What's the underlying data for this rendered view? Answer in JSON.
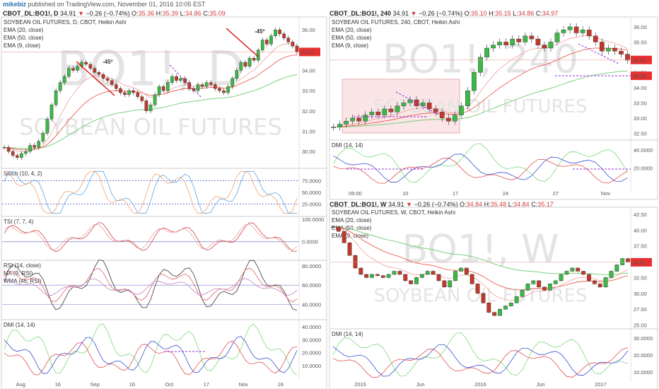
{
  "header": {
    "user": "mikebiz",
    "published": "published on TradingView.com, November 01, 2016 10:05 EST"
  },
  "symbol_bars": [
    {
      "id": "d",
      "sym": "CBOT_DL:BO1!, D",
      "last": "34.91",
      "chg": "−0.26 (−0.74%)",
      "o": "35.36",
      "h": "35.39",
      "l": "34.86",
      "c": "35.09"
    },
    {
      "id": "h4",
      "sym": "CBOT_DL:BO1!, 240",
      "last": "34.91",
      "chg": "−0.26 (−0.74%)",
      "o": "35.10",
      "h": "35.15",
      "l": "34.86",
      "c": "34.97"
    },
    {
      "id": "w",
      "sym": "CBOT_DL:BO1!, W",
      "last": "34.91",
      "chg": "−0.26 (−0.74%)",
      "o": "34.84",
      "h": "35.48",
      "l": "34.84",
      "c": "35.17"
    }
  ],
  "chart_data": [
    {
      "id": "daily",
      "type": "candlestick",
      "title": "SOYBEAN OIL FUTURES, D, CBOT, Heikin Ashi",
      "watermark": "BO1!, D",
      "watermark_sub": "SOYBEAN OIL FUTURES",
      "overlays": [
        "EMA (20, close)",
        "EMA (50, close)",
        "EMA (9, close)"
      ],
      "price_ticks": [
        "36.00",
        "35.00",
        "34.00",
        "33.00",
        "32.00",
        "31.00",
        "30.00"
      ],
      "last_price": "34.91",
      "annotations": [
        "-45º",
        "-45º"
      ],
      "x_ticks": [
        "Aug",
        "16",
        "Sep",
        "16",
        "Oct",
        "17",
        "Nov",
        "16"
      ],
      "candles": [
        30.2,
        30.0,
        29.8,
        29.7,
        29.9,
        30.0,
        30.3,
        30.2,
        30.5,
        30.9,
        31.6,
        32.3,
        33.0,
        33.4,
        33.7,
        34.1,
        34.0,
        34.2,
        34.4,
        34.3,
        34.1,
        33.9,
        33.8,
        33.6,
        33.5,
        33.3,
        33.1,
        32.9,
        32.8,
        33.0,
        32.9,
        32.7,
        32.5,
        32.0,
        32.3,
        32.8,
        33.2,
        33.0,
        33.4,
        33.7,
        33.5,
        33.6,
        33.4,
        33.1,
        33.0,
        33.3,
        33.2,
        33.4,
        33.3,
        33.1,
        33.0,
        32.9,
        33.2,
        33.6,
        34.0,
        34.4,
        34.2,
        34.6,
        34.5,
        35.0,
        35.5,
        35.3,
        35.7,
        36.0,
        35.8,
        35.6,
        35.4,
        35.2,
        34.9
      ],
      "indicators": [
        {
          "name": "Stoch (10, 4, 2)",
          "ticks": [
            "75.0000",
            "50.0000",
            "25.0000"
          ]
        },
        {
          "name": "TSI (7, 7, 4)",
          "ticks": [
            "100.0000",
            "0.0000"
          ]
        },
        {
          "name": "RSI (14, close)",
          "sub": [
            "MA (9, RSI)",
            "WMA (45, RSI)"
          ],
          "ticks": [
            "80.0000",
            "60.0000",
            "40.0000"
          ]
        },
        {
          "name": "DMI (14, 14)",
          "ticks": [
            "40.0000",
            "30.0000",
            "20.0000",
            "10.0000"
          ]
        }
      ]
    },
    {
      "id": "h240",
      "type": "candlestick",
      "title": "SOYBEAN OIL FUTURES, 240, CBOT, Heikin Ashi",
      "watermark": "BO1!, 240",
      "watermark_sub": "SOYBEAN OIL FUTURES",
      "overlays": [
        "EMA (20, close)",
        "EMA (50, close)",
        "EMA (9, close)"
      ],
      "price_ticks": [
        "36.00",
        "35.50",
        "35.00",
        "34.50",
        "34.00",
        "33.50",
        "33.00",
        "32.50"
      ],
      "last_price": "34.91",
      "level_price": "34.39",
      "x_ticks": [
        "09:00",
        "10",
        "17",
        "24",
        "27",
        "Nov"
      ],
      "candles": [
        32.7,
        32.8,
        32.9,
        33.0,
        32.9,
        33.1,
        33.2,
        33.1,
        33.3,
        33.2,
        33.4,
        33.5,
        33.6,
        33.4,
        33.5,
        33.3,
        33.2,
        33.0,
        32.9,
        33.1,
        33.4,
        33.9,
        34.5,
        35.0,
        35.3,
        35.4,
        35.5,
        35.4,
        35.6,
        35.5,
        35.7,
        35.6,
        35.4,
        35.3,
        35.5,
        35.8,
        35.9,
        36.0,
        35.8,
        35.9,
        35.7,
        35.5,
        35.2,
        35.3,
        35.2,
        35.1,
        34.9
      ],
      "indicators": [
        {
          "name": "DMI (14, 14)",
          "ticks": [
            "40.0000",
            "20.0000"
          ]
        }
      ]
    },
    {
      "id": "weekly",
      "type": "candlestick",
      "title": "SOYBEAN OIL FUTURES, W, CBOT, Heikin Ashi",
      "watermark": "BO1!, W",
      "watermark_sub": "SOYBEAN OIL FUTURES",
      "overlays": [
        "EMA (20, close)",
        "EMA (50, close)",
        "EMA (9, close)"
      ],
      "price_ticks": [
        "42.50",
        "40.00",
        "37.50",
        "35.00",
        "32.50",
        "30.00",
        "27.50",
        "25.00"
      ],
      "last_price": "34.91",
      "x_ticks": [
        "2015",
        "Jun",
        "2016",
        "Jun",
        "2017"
      ],
      "candles": [
        40.5,
        39.8,
        38.0,
        36.0,
        34.0,
        33.0,
        32.5,
        33.0,
        32.8,
        32.5,
        33.0,
        33.5,
        33.0,
        32.0,
        31.5,
        32.5,
        33.0,
        33.5,
        33.0,
        32.0,
        31.0,
        32.0,
        33.5,
        34.0,
        33.0,
        31.5,
        30.0,
        28.5,
        27.0,
        26.5,
        27.5,
        28.0,
        28.5,
        29.5,
        30.5,
        31.5,
        32.0,
        31.0,
        30.5,
        31.5,
        32.0,
        33.0,
        33.5,
        34.0,
        33.5,
        33.0,
        32.0,
        31.5,
        31.0,
        32.5,
        33.5,
        34.5,
        35.5,
        35.0
      ],
      "indicators": [
        {
          "name": "DMI (14, 14)",
          "ticks": [
            "30.0000",
            "20.0000",
            "10.0000"
          ]
        }
      ]
    }
  ],
  "colors": {
    "up": "#3cb846",
    "down": "#c0392b",
    "ema20": "#e74c3c",
    "ema50": "#7dce7d",
    "ema9": "#f0a0a0",
    "dash": "#9b30d9",
    "blue": "#3a4fd0"
  }
}
